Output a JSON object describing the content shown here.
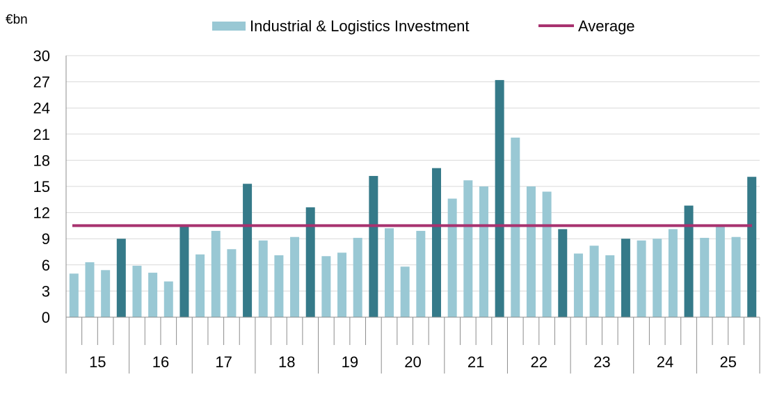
{
  "chart_data": {
    "type": "bar",
    "ylabel": "€bn",
    "ylim": [
      0,
      30
    ],
    "yticks": [
      "0",
      "3",
      "6",
      "9",
      "12",
      "15",
      "18",
      "21",
      "24",
      "27",
      "30"
    ],
    "grid": true,
    "legend_position": "top",
    "legend": {
      "bars": "Industrial & Logistics Investment",
      "line": "Average"
    },
    "year_labels": [
      "15",
      "16",
      "17",
      "18",
      "19",
      "20",
      "21",
      "22",
      "23",
      "24",
      "25"
    ],
    "quarters_per_year": 4,
    "series": [
      {
        "name": "Industrial & Logistics Investment",
        "values": [
          5.0,
          6.3,
          5.4,
          9.0,
          5.9,
          5.1,
          4.1,
          10.5,
          7.2,
          9.9,
          7.8,
          15.3,
          8.8,
          7.1,
          9.2,
          12.6,
          7.0,
          7.4,
          9.1,
          16.2,
          10.2,
          5.8,
          9.9,
          17.1,
          13.6,
          15.7,
          15.0,
          27.2,
          20.6,
          15.0,
          14.4,
          10.1,
          7.3,
          8.2,
          7.1,
          9.0,
          8.8,
          9.0,
          10.1,
          12.8,
          9.1,
          10.5,
          9.2,
          16.1
        ]
      },
      {
        "name": "Average",
        "value": 10.5
      }
    ],
    "colors": {
      "quarter_bar": "#99c8d4",
      "q4_bar": "#357a89",
      "average_line": "#a8326f",
      "grid": "#d9d9d9",
      "axis": "#8c8c8c",
      "text": "#000000"
    }
  }
}
